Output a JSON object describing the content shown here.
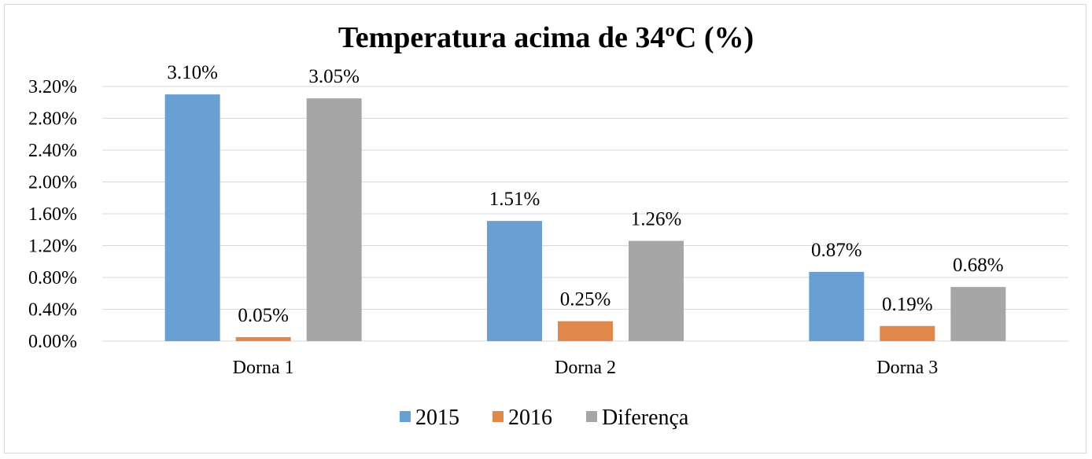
{
  "chart_data": {
    "type": "bar",
    "title": "Temperatura acima de 34ºC (%)",
    "xlabel": "",
    "ylabel": "",
    "ylim": [
      0,
      3.2
    ],
    "yticks": [
      0,
      0.4,
      0.8,
      1.2,
      1.6,
      2.0,
      2.4,
      2.8,
      3.2
    ],
    "ytick_labels": [
      "0.00%",
      "0.40%",
      "0.80%",
      "1.20%",
      "1.60%",
      "2.00%",
      "2.40%",
      "2.80%",
      "3.20%"
    ],
    "grid": true,
    "legend_position": "bottom",
    "categories": [
      "Dorna 1",
      "Dorna 2",
      "Dorna 3"
    ],
    "series": [
      {
        "name": "2015",
        "color": "#6a9fd4",
        "values": [
          3.1,
          1.51,
          0.87
        ],
        "labels": [
          "3.10%",
          "1.51%",
          "0.87%"
        ]
      },
      {
        "name": "2016",
        "color": "#e0894a",
        "values": [
          0.05,
          0.25,
          0.19
        ],
        "labels": [
          "0.05%",
          "0.25%",
          "0.19%"
        ]
      },
      {
        "name": "Diferença",
        "color": "#a6a6a6",
        "values": [
          3.05,
          1.26,
          0.68
        ],
        "labels": [
          "3.05%",
          "1.26%",
          "0.68%"
        ]
      }
    ]
  }
}
